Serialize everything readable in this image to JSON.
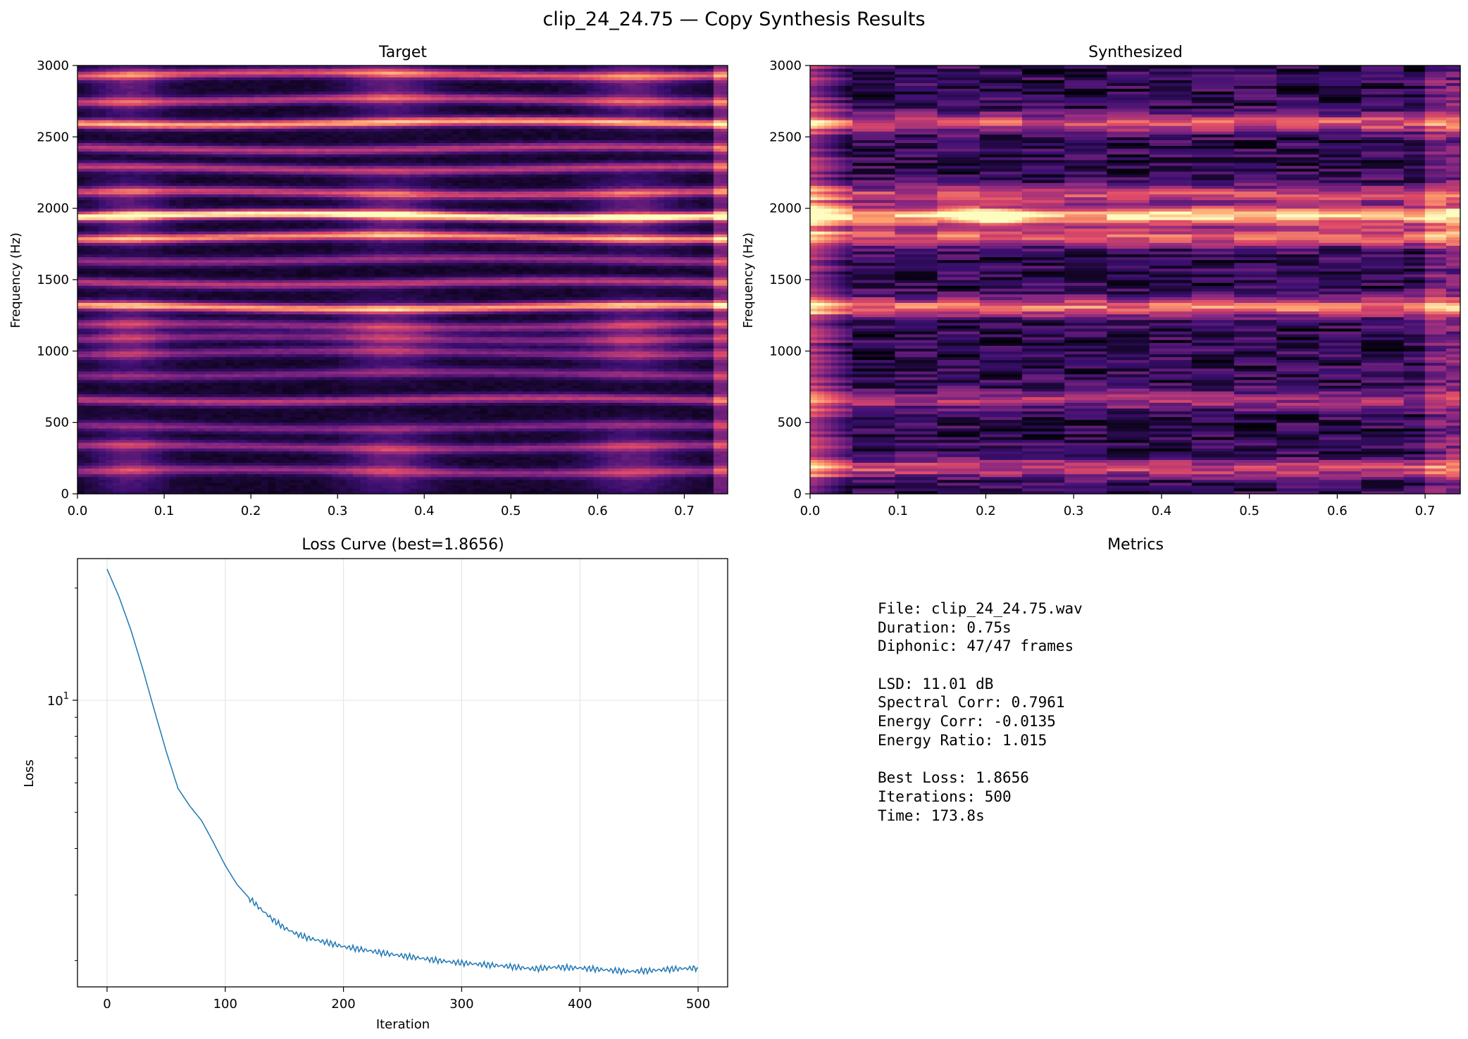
{
  "figure": {
    "title": "clip_24_24.75 — Copy Synthesis Results"
  },
  "colors": {
    "loss_line": "#1f77b4",
    "grid": "#e6e6e6",
    "colormap": [
      "#000004",
      "#3b0f70",
      "#8c2981",
      "#de4968",
      "#fe9f6d",
      "#fcfdbf"
    ]
  },
  "chart_data": [
    {
      "type": "heatmap",
      "title": "Target",
      "xlabel": "",
      "ylabel": "Frequency (Hz)",
      "xlim": [
        0,
        0.75
      ],
      "ylim": [
        0,
        3000
      ],
      "x_ticks": [
        "0.0",
        "0.1",
        "0.2",
        "0.3",
        "0.4",
        "0.5",
        "0.6",
        "0.7"
      ],
      "y_ticks": [
        "0",
        "500",
        "1000",
        "1500",
        "2000",
        "2500",
        "3000"
      ],
      "colormap": "magma",
      "bands_hz": [
        160,
        330,
        470,
        660,
        840,
        990,
        1090,
        1180,
        1310,
        1480,
        1640,
        1800,
        1950,
        2110,
        2280,
        2420,
        2600,
        2760,
        2940
      ],
      "band_strength": [
        0.35,
        0.35,
        0.3,
        0.45,
        0.3,
        0.3,
        0.3,
        0.35,
        0.75,
        0.45,
        0.35,
        0.7,
        0.95,
        0.5,
        0.45,
        0.45,
        0.75,
        0.45,
        0.55
      ],
      "bright_band_hz": [
        1950,
        1800,
        2600,
        1310
      ]
    },
    {
      "type": "heatmap",
      "title": "Synthesized",
      "xlabel": "",
      "ylabel": "Frequency (Hz)",
      "xlim": [
        0,
        0.74
      ],
      "ylim": [
        0,
        3000
      ],
      "x_ticks": [
        "0.0",
        "0.1",
        "0.2",
        "0.3",
        "0.4",
        "0.5",
        "0.6",
        "0.7"
      ],
      "y_ticks": [
        "0",
        "500",
        "1000",
        "1500",
        "2000",
        "2500",
        "3000"
      ],
      "colormap": "magma",
      "bands_hz": [
        180,
        660,
        1310,
        1800,
        1950,
        2100,
        2600
      ],
      "band_strength": [
        0.4,
        0.3,
        0.55,
        0.5,
        0.75,
        0.4,
        0.45
      ],
      "hotspot": {
        "time_s": 0.2,
        "freq_hz": 1950
      }
    },
    {
      "type": "line",
      "title": "Loss Curve (best=1.8656)",
      "xlabel": "Iteration",
      "ylabel": "Loss",
      "yscale": "log",
      "xlim": [
        -25,
        525
      ],
      "ylim": [
        1.7,
        24
      ],
      "x_ticks": [
        "0",
        "100",
        "200",
        "300",
        "400",
        "500"
      ],
      "y_tick_label": "10",
      "y_tick_exponent": "1",
      "grid": true,
      "series": [
        {
          "x": [
            0,
            10,
            20,
            30,
            40,
            50,
            60,
            70,
            80,
            90,
            100,
            110,
            120,
            130,
            140,
            150,
            160,
            170,
            180,
            190,
            200,
            220,
            240,
            260,
            280,
            300,
            320,
            340,
            360,
            380,
            400,
            420,
            440,
            460,
            480,
            500
          ],
          "y": [
            22.5,
            19.0,
            15.5,
            12.2,
            9.4,
            7.3,
            5.8,
            5.2,
            4.75,
            4.15,
            3.6,
            3.2,
            2.95,
            2.75,
            2.58,
            2.45,
            2.36,
            2.3,
            2.26,
            2.22,
            2.18,
            2.13,
            2.08,
            2.04,
            2.0,
            1.97,
            1.95,
            1.93,
            1.9,
            1.92,
            1.91,
            1.89,
            1.87,
            1.88,
            1.9,
            1.91
          ]
        }
      ]
    }
  ],
  "metrics": {
    "title": "Metrics",
    "lines": [
      "File: clip_24_24.75.wav",
      "Duration: 0.75s",
      "Diphonic: 47/47 frames",
      "",
      "LSD: 11.01 dB",
      "Spectral Corr: 0.7961",
      "Energy Corr: -0.0135",
      "Energy Ratio: 1.015",
      "",
      "Best Loss: 1.8656",
      "Iterations: 500",
      "Time: 173.8s"
    ]
  }
}
